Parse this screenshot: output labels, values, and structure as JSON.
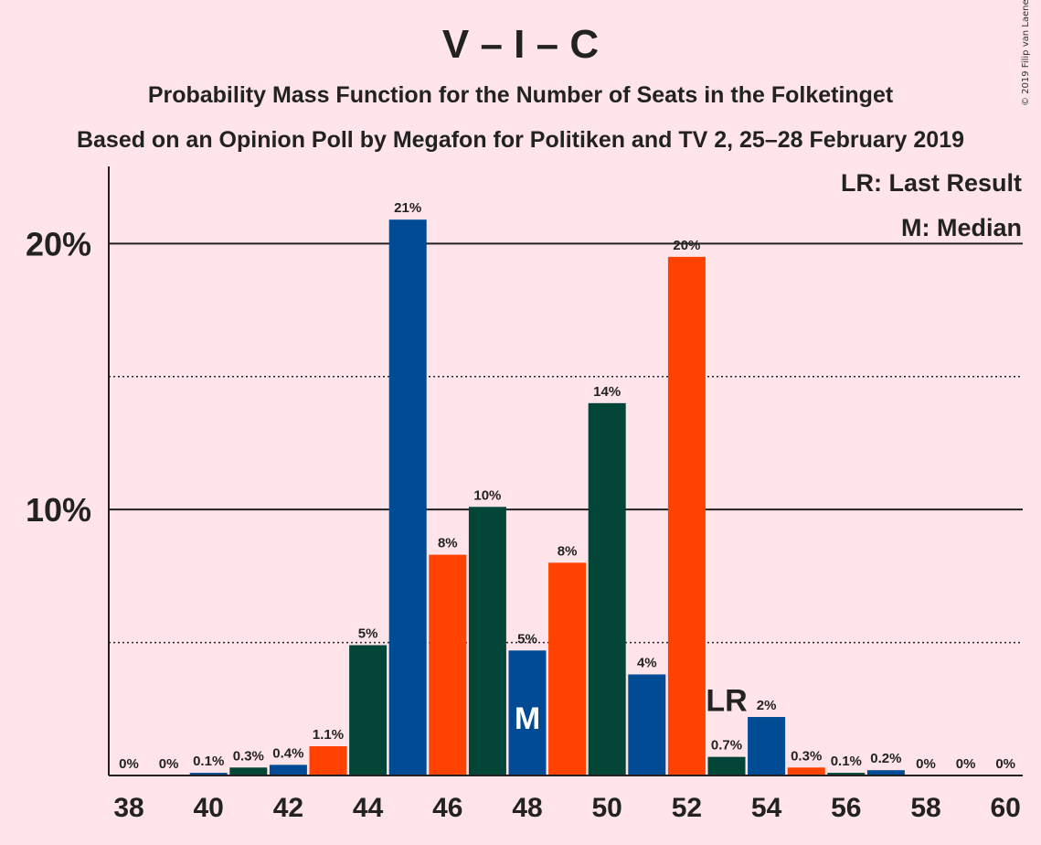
{
  "title": "V – I – C",
  "subtitle": "Probability Mass Function for the Number of Seats in the Folketinget",
  "subtitle2": "Based on an Opinion Poll by Megafon for Politiken and TV 2, 25–28 February 2019",
  "copyright": "© 2019 Filip van Laenen",
  "colors": {
    "background": "#FFE5E9",
    "V": "#004B93",
    "I": "#FF4200",
    "C": "#034638",
    "median_label": "#FFFFFF",
    "last_result_label": "#222222"
  },
  "legend": {
    "last_result": "LR: Last Result",
    "median": "M: Median"
  },
  "chart_data": {
    "type": "bar",
    "x": [
      38,
      39,
      40,
      41,
      42,
      43,
      44,
      45,
      46,
      47,
      48,
      49,
      50,
      51,
      52,
      53,
      54,
      55,
      56,
      57,
      58,
      59,
      60
    ],
    "values": [
      0,
      0,
      0.1,
      0.3,
      0.4,
      1.1,
      4.9,
      20.9,
      8.3,
      10.1,
      4.7,
      8.0,
      14.0,
      3.8,
      19.5,
      0.7,
      2.2,
      0.3,
      0.1,
      0.2,
      0,
      0,
      0
    ],
    "labels": [
      "0%",
      "0%",
      "0.1%",
      "0.3%",
      "0.4%",
      "1.1%",
      "5%",
      "21%",
      "8%",
      "10%",
      "5%",
      "8%",
      "14%",
      "4%",
      "20%",
      "0.7%",
      "2%",
      "0.3%",
      "0.1%",
      "0.2%",
      "0%",
      "0%",
      "0%"
    ],
    "bar_colors": [
      "#FF4200",
      "#034638",
      "#004B93",
      "#034638",
      "#004B93",
      "#FF4200",
      "#034638",
      "#004B93",
      "#FF4200",
      "#034638",
      "#004B93",
      "#FF4200",
      "#034638",
      "#004B93",
      "#FF4200",
      "#034638",
      "#004B93",
      "#FF4200",
      "#034638",
      "#004B93",
      "#FF4200",
      "#034638",
      "#004B93"
    ],
    "x_ticks": [
      "38",
      "40",
      "42",
      "44",
      "46",
      "48",
      "50",
      "52",
      "54",
      "56",
      "58",
      "60"
    ],
    "y_ticks": [
      {
        "value": 10,
        "label": "10%"
      },
      {
        "value": 20,
        "label": "20%"
      }
    ],
    "minor_gridlines": [
      5,
      15
    ],
    "ylim": [
      0,
      22.9
    ],
    "median": {
      "x": 48,
      "label": "M"
    },
    "last_result": {
      "x": 53,
      "label": "LR"
    }
  }
}
